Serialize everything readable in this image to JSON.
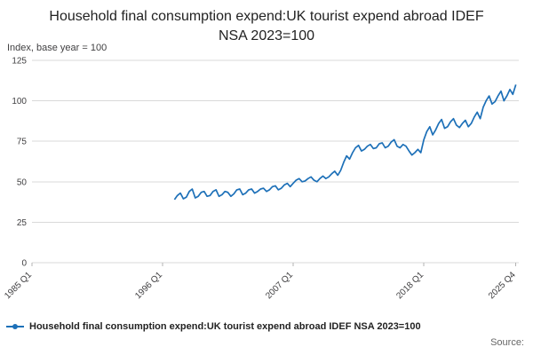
{
  "title": "Household final consumption expend:UK tourist expend abroad IDEF NSA 2023=100",
  "y_axis_note": "Index, base year = 100",
  "legend": {
    "label": "Household final consumption expend:UK tourist expend abroad IDEF NSA 2023=100"
  },
  "source_label": "Source:",
  "chart_data": {
    "type": "line",
    "title": "Household final consumption expend:UK tourist expend abroad IDEF NSA 2023=100",
    "xlabel": "",
    "ylabel": "Index, base year = 100",
    "x_range": [
      1985,
      2026
    ],
    "y_range": [
      0,
      125
    ],
    "y_ticks": [
      0,
      25,
      50,
      75,
      100,
      125
    ],
    "x_ticks": [
      {
        "label": "1985 Q1",
        "year": 1985
      },
      {
        "label": "1996 Q1",
        "year": 1996
      },
      {
        "label": "2007 Q1",
        "year": 2007
      },
      {
        "label": "2018 Q1",
        "year": 2018
      },
      {
        "label": "2025 Q4",
        "year": 2025.75
      }
    ],
    "grid": true,
    "legend_position": "bottom-left",
    "line_color": "#1d70b8",
    "series": [
      {
        "name": "Household final consumption expend:UK tourist expend abroad IDEF NSA 2023=100",
        "frequency": "quarterly",
        "start_year": 1997,
        "start_quarter": "Q1",
        "end_label": "2025 Q4",
        "values": [
          39,
          41.5,
          43,
          39.5,
          40.5,
          44,
          45.5,
          40,
          41,
          43.5,
          44,
          41,
          41.5,
          44,
          45,
          41,
          42,
          44,
          43.5,
          41,
          42.5,
          45,
          45.5,
          42,
          43,
          45,
          45.5,
          43,
          44,
          45.5,
          46,
          44,
          45,
          47,
          47.5,
          45,
          46,
          48,
          49,
          47,
          49,
          51,
          52,
          50,
          50.5,
          52,
          53,
          51,
          50,
          52,
          53.5,
          52,
          53,
          55,
          56.5,
          54,
          57,
          62,
          66,
          64,
          68,
          71,
          72.5,
          69,
          70,
          72,
          73,
          70.5,
          71,
          73.5,
          74,
          71,
          72,
          74.5,
          76,
          72,
          71,
          73,
          72,
          69,
          66.5,
          68,
          70,
          68,
          76,
          81,
          84,
          79,
          82,
          86,
          88.5,
          83,
          84,
          87,
          89,
          85,
          83.5,
          86,
          88,
          84,
          86,
          90,
          93,
          89,
          96,
          100,
          103,
          98,
          99.5,
          103,
          106,
          100,
          103,
          107,
          104,
          110
        ]
      }
    ]
  }
}
